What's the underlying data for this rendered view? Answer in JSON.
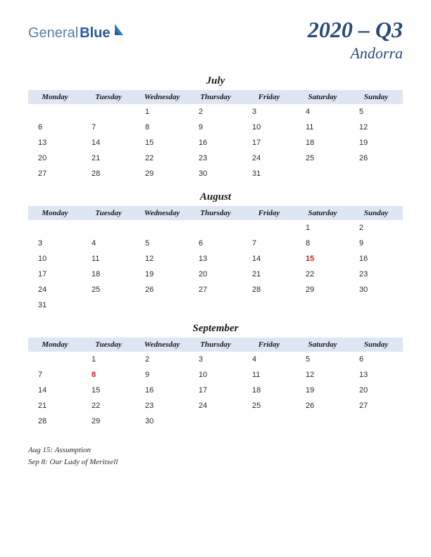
{
  "logo": {
    "part1": "General",
    "part2": "Blue"
  },
  "title": "2020 – Q3",
  "subtitle": "Andorra",
  "day_headers": [
    "Monday",
    "Tuesday",
    "Wednesday",
    "Thursday",
    "Friday",
    "Saturday",
    "Sunday"
  ],
  "months": [
    {
      "name": "July",
      "weeks": [
        [
          "",
          "",
          "1",
          "2",
          "3",
          "4",
          "5"
        ],
        [
          "6",
          "7",
          "8",
          "9",
          "10",
          "11",
          "12"
        ],
        [
          "13",
          "14",
          "15",
          "16",
          "17",
          "18",
          "19"
        ],
        [
          "20",
          "21",
          "22",
          "23",
          "24",
          "25",
          "26"
        ],
        [
          "27",
          "28",
          "29",
          "30",
          "31",
          "",
          ""
        ]
      ],
      "holidays": []
    },
    {
      "name": "August",
      "weeks": [
        [
          "",
          "",
          "",
          "",
          "",
          "1",
          "2"
        ],
        [
          "3",
          "4",
          "5",
          "6",
          "7",
          "8",
          "9"
        ],
        [
          "10",
          "11",
          "12",
          "13",
          "14",
          "15",
          "16"
        ],
        [
          "17",
          "18",
          "19",
          "20",
          "21",
          "22",
          "23"
        ],
        [
          "24",
          "25",
          "26",
          "27",
          "28",
          "29",
          "30"
        ],
        [
          "31",
          "",
          "",
          "",
          "",
          "",
          ""
        ]
      ],
      "holidays": [
        "15"
      ]
    },
    {
      "name": "September",
      "weeks": [
        [
          "",
          "1",
          "2",
          "3",
          "4",
          "5",
          "6"
        ],
        [
          "7",
          "8",
          "9",
          "10",
          "11",
          "12",
          "13"
        ],
        [
          "14",
          "15",
          "16",
          "17",
          "18",
          "19",
          "20"
        ],
        [
          "21",
          "22",
          "23",
          "24",
          "25",
          "26",
          "27"
        ],
        [
          "28",
          "29",
          "30",
          "",
          "",
          "",
          ""
        ]
      ],
      "holidays": [
        "8"
      ]
    }
  ],
  "holiday_notes": [
    "Aug 15: Assumption",
    "Sep 8: Our Lady of Meritxell"
  ],
  "colors": {
    "header_bg": "#dde6f2",
    "title_color": "#2a4a7a",
    "holiday_color": "#c02020",
    "logo_light": "#5a7ba8",
    "logo_dark": "#2a5a9a"
  }
}
